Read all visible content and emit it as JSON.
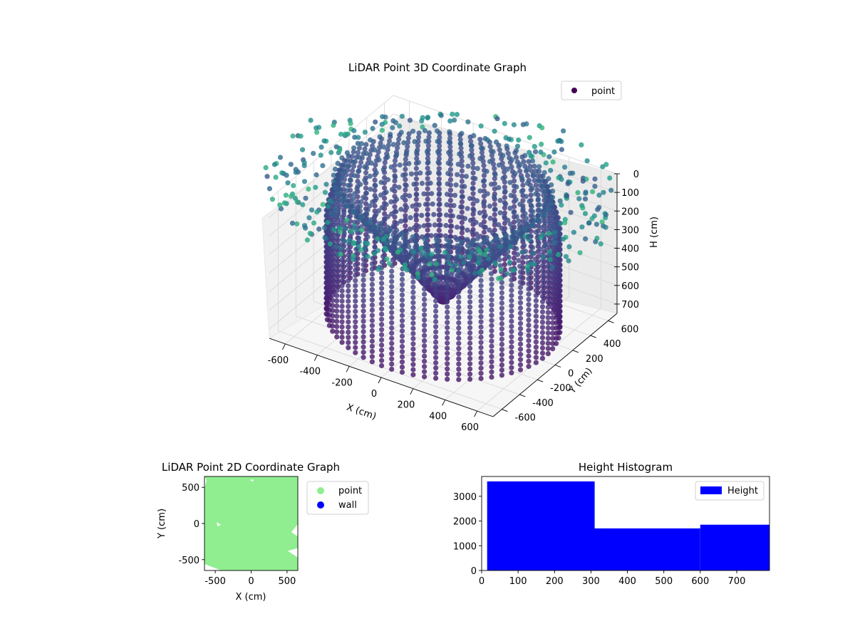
{
  "chart_data": [
    {
      "type": "scatter",
      "title": "LiDAR Point 3D Coordinate Graph",
      "xlabel": "X (cm)",
      "ylabel": "Y (cm)",
      "zlabel": "H (cm)",
      "xlim": [
        -700,
        700
      ],
      "ylim": [
        -700,
        700
      ],
      "zlim": [
        0,
        750
      ],
      "z_axis_inverted": true,
      "x_ticks": [
        "-600",
        "-400",
        "-200",
        "0",
        "200",
        "400",
        "600"
      ],
      "y_ticks": [
        "-600",
        "-400",
        "-200",
        "0",
        "200",
        "400",
        "600"
      ],
      "z_ticks": [
        "0",
        "100",
        "200",
        "300",
        "400",
        "500",
        "600",
        "700"
      ],
      "grid": true,
      "colormap": "viridis",
      "legend": {
        "position": "top-right",
        "entries": [
          {
            "label": "point",
            "color": "#440154"
          }
        ]
      },
      "structure": {
        "outer_wall": {
          "radius_cm": 640,
          "height_range_cm": [
            0,
            720
          ],
          "columns": 64
        },
        "inner_cone": {
          "apex_height_cm": 720,
          "base_radius_cm": 580
        },
        "ground_scatter": {
          "radius_range_cm": [
            640,
            980
          ],
          "height_cm": 0
        }
      }
    },
    {
      "type": "scatter",
      "title": "LiDAR Point 2D Coordinate Graph",
      "xlabel": "X (cm)",
      "ylabel": "Y (cm)",
      "xlim": [
        -650,
        650
      ],
      "ylim": [
        -650,
        650
      ],
      "x_ticks": [
        "-500",
        "0",
        "500"
      ],
      "y_ticks": [
        "500",
        "0",
        "-500"
      ],
      "legend": {
        "position": "outside-right",
        "entries": [
          {
            "label": "point",
            "color": "#90ee90"
          },
          {
            "label": "wall",
            "color": "#0000ff"
          }
        ]
      }
    },
    {
      "type": "bar",
      "title": "Height Histogram",
      "xlabel": "",
      "ylabel": "",
      "bins": [
        {
          "start": 15,
          "end": 310,
          "count": 3600
        },
        {
          "start": 310,
          "end": 600,
          "count": 1700
        },
        {
          "start": 600,
          "end": 790,
          "count": 1850
        }
      ],
      "xlim": [
        0,
        790
      ],
      "ylim": [
        0,
        3800
      ],
      "x_ticks": [
        "0",
        "100",
        "200",
        "300",
        "400",
        "500",
        "600",
        "700"
      ],
      "y_ticks": [
        "0",
        "1000",
        "2000",
        "3000"
      ],
      "bar_color": "#0000ff",
      "legend": {
        "position": "top-right",
        "entries": [
          {
            "label": "Height",
            "color": "#0000ff"
          }
        ]
      }
    }
  ]
}
